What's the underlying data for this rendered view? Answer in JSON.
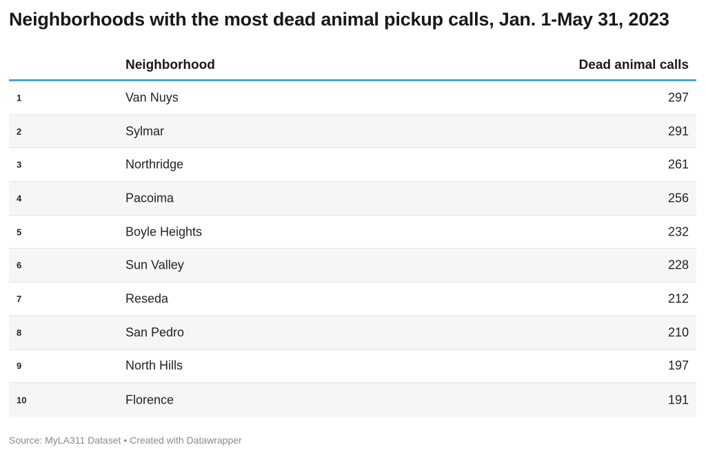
{
  "chart_data": {
    "type": "table",
    "title": "Neighborhoods with the most dead animal pickup calls, Jan. 1-May 31, 2023",
    "columns": [
      "",
      "Neighborhood",
      "Dead animal calls"
    ],
    "rows": [
      {
        "rank": "1",
        "neighborhood": "Van Nuys",
        "calls": 297
      },
      {
        "rank": "2",
        "neighborhood": "Sylmar",
        "calls": 291
      },
      {
        "rank": "3",
        "neighborhood": "Northridge",
        "calls": 261
      },
      {
        "rank": "4",
        "neighborhood": "Pacoima",
        "calls": 256
      },
      {
        "rank": "5",
        "neighborhood": "Boyle Heights",
        "calls": 232
      },
      {
        "rank": "6",
        "neighborhood": "Sun Valley",
        "calls": 228
      },
      {
        "rank": "7",
        "neighborhood": "Reseda",
        "calls": 212
      },
      {
        "rank": "8",
        "neighborhood": "San Pedro",
        "calls": 210
      },
      {
        "rank": "9",
        "neighborhood": "North Hills",
        "calls": 197
      },
      {
        "rank": "10",
        "neighborhood": "Florence",
        "calls": 191
      }
    ],
    "header_rule_color": "#3fa7d6",
    "alt_row_color": "#f6f6f6"
  },
  "footer": {
    "text": "Source: MyLA311 Dataset • Created with Datawrapper"
  }
}
